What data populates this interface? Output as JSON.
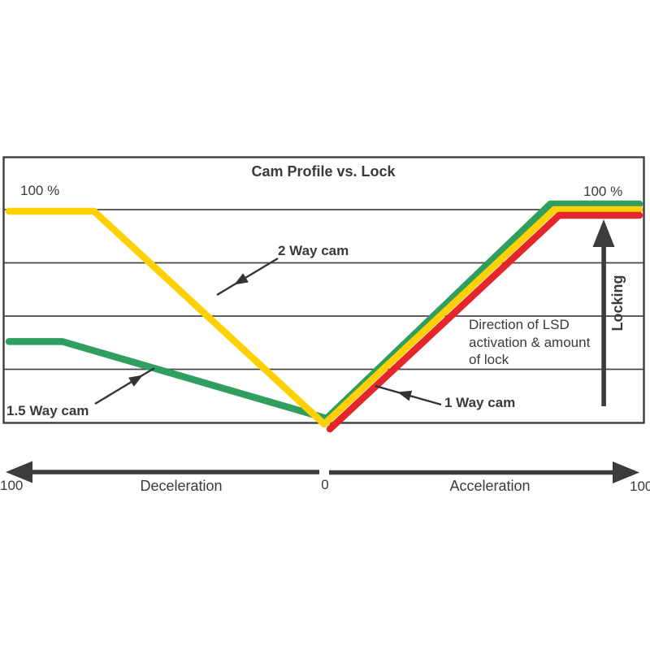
{
  "title": "Cam Profile vs. Lock",
  "colors": {
    "two_way_yellow": "#FFD103",
    "one_five_way_green": "#2F9E5E",
    "one_way_red": "#E42529",
    "ink": "#3A3A3C",
    "grid": "#47474A"
  },
  "labels": {
    "top_left_pct": "100 %",
    "top_right_pct": "100 %",
    "direction_note": "Direction of LSD activation & amount of lock",
    "locking": "Locking",
    "axis_left_end": "100",
    "deceleration": "Deceleration",
    "axis_zero": "0",
    "acceleration": "Acceleration",
    "axis_right_end": "100"
  },
  "chart_data": {
    "type": "line",
    "title": "Cam Profile vs. Lock",
    "xlabel": "Deceleration (left, 100..0) / Acceleration (right, 0..100)",
    "ylabel": "Locking (% of lock)",
    "x_axis": {
      "min": -100,
      "max": 100,
      "tick_labels": [
        "100",
        "0",
        "100"
      ]
    },
    "y_axis": {
      "min": 0,
      "max": 100,
      "max_label": "100 %",
      "gridlines": 4
    },
    "legend_position": "inline-annotations",
    "annotation": "Direction of LSD activation & amount of lock",
    "series": [
      {
        "name": "1.5 Way cam",
        "color": "#2F9E5E",
        "points": [
          [
            -100,
            38
          ],
          [
            -83,
            38
          ],
          [
            0,
            0
          ],
          [
            72,
            100
          ],
          [
            100,
            100
          ]
        ]
      },
      {
        "name": "2 Way cam",
        "color": "#FFD103",
        "points": [
          [
            -100,
            100
          ],
          [
            -73,
            100
          ],
          [
            0,
            0
          ],
          [
            73,
            100
          ],
          [
            100,
            100
          ]
        ]
      },
      {
        "name": "1 Way cam",
        "color": "#E42529",
        "points": [
          [
            0,
            0
          ],
          [
            74,
            100
          ],
          [
            100,
            100
          ]
        ]
      }
    ]
  }
}
